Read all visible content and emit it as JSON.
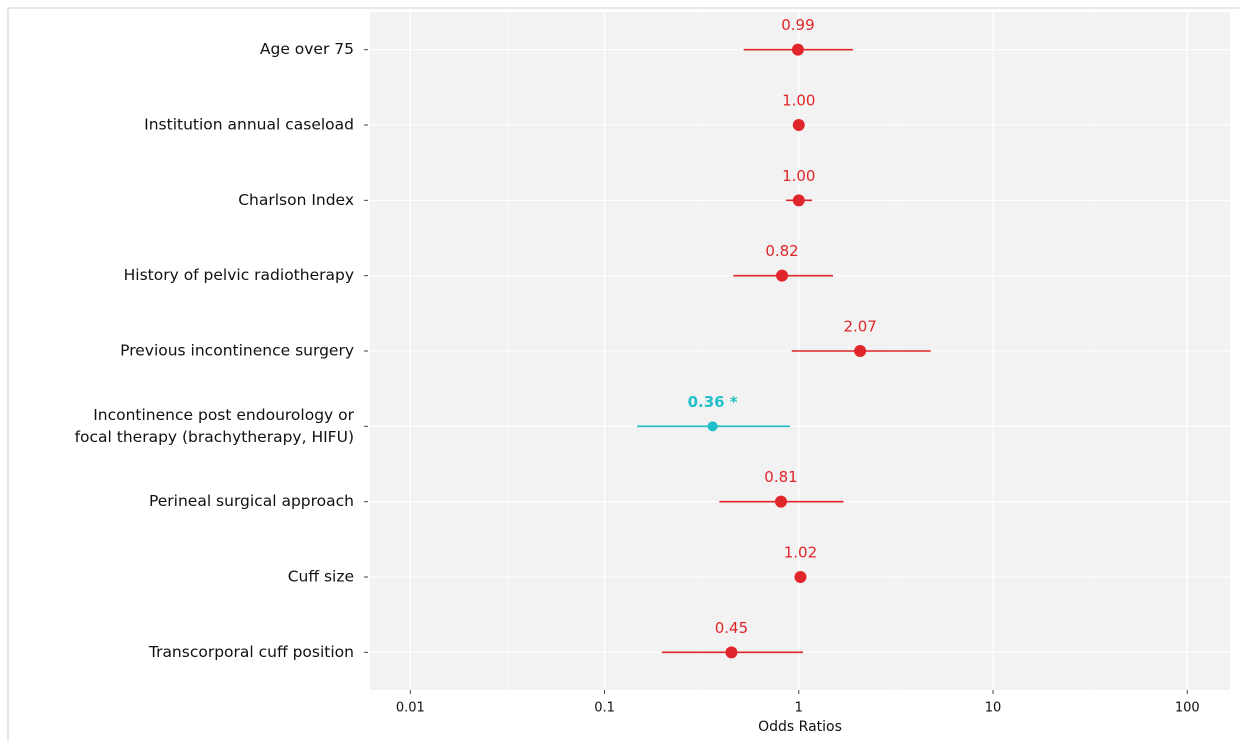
{
  "chart_data": {
    "type": "forest",
    "x_label": "Odds Ratios",
    "categories": [
      "Age over 75",
      "Institution annual caseload",
      "Charlson Index",
      "History of pelvic radiotherapy",
      "Previous incontinence surgery",
      [
        "Incontinence post endourology or",
        "focal therapy (brachytherapy, HIFU)"
      ],
      "Perineal surgical approach",
      "Cuff size",
      "Transcorporal cuff position"
    ],
    "values": [
      0.99,
      1.0,
      1.0,
      0.82,
      2.07,
      0.36,
      0.81,
      1.02,
      0.45
    ],
    "value_labels": [
      "0.99",
      "1.00",
      "1.00",
      "0.82",
      "2.07",
      "0.36 *",
      "0.81",
      "1.02",
      "0.45"
    ],
    "lower": [
      0.52,
      0.99,
      0.86,
      0.46,
      0.92,
      0.147,
      0.39,
      1.0,
      0.197
    ],
    "upper": [
      1.9,
      1.01,
      1.17,
      1.5,
      4.78,
      0.9,
      1.7,
      1.04,
      1.05
    ],
    "colors": [
      "#e0262a",
      "#e0262a",
      "#e0262a",
      "#e0262a",
      "#e0262a",
      "#20bfc9",
      "#e0262a",
      "#e0262a",
      "#e0262a"
    ],
    "label_bold": [
      false,
      false,
      false,
      false,
      false,
      true,
      false,
      false,
      false
    ],
    "xlog": true,
    "xlim": [
      0.0062,
      166
    ],
    "xticks": [
      0.01,
      0.1,
      1,
      10,
      100
    ],
    "grid": true
  }
}
